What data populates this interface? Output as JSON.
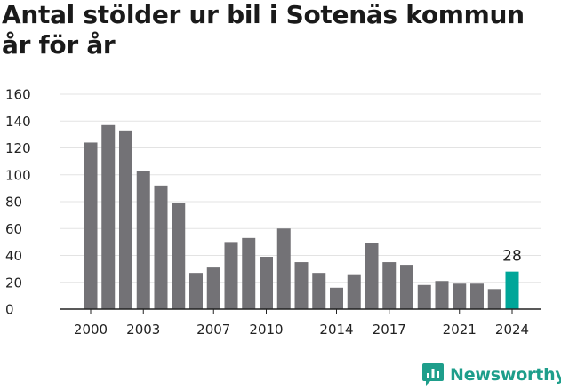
{
  "title": "Antal stölder ur bil i Sotenäs kommun år för år",
  "brand": {
    "name": "Newsworthy",
    "icon": "newsworthy-logo-icon",
    "color": "#1e9e8b"
  },
  "colors": {
    "bar": "#737276",
    "highlight": "#00a699",
    "grid": "#e3e3e3",
    "axis": "#222222"
  },
  "chart_data": {
    "type": "bar",
    "title": "Antal stölder ur bil i Sotenäs kommun år för år",
    "xlabel": "",
    "ylabel": "",
    "categories": [
      2000,
      2001,
      2002,
      2003,
      2004,
      2005,
      2006,
      2007,
      2008,
      2009,
      2010,
      2011,
      2012,
      2013,
      2014,
      2015,
      2016,
      2017,
      2018,
      2019,
      2020,
      2021,
      2022,
      2023,
      2024
    ],
    "values": [
      124,
      137,
      133,
      103,
      92,
      79,
      27,
      31,
      50,
      53,
      39,
      60,
      35,
      27,
      16,
      26,
      49,
      35,
      33,
      18,
      21,
      19,
      19,
      15,
      28
    ],
    "x_tick_labels": [
      "2000",
      "2003",
      "2007",
      "2010",
      "2014",
      "2017",
      "2021",
      "2024"
    ],
    "y_tick_labels": [
      "0",
      "20",
      "40",
      "60",
      "80",
      "100",
      "120",
      "140",
      "160"
    ],
    "ylim": [
      0,
      160
    ],
    "grid": true,
    "highlight_category": 2024,
    "highlight_label": "28",
    "legend": "none"
  }
}
